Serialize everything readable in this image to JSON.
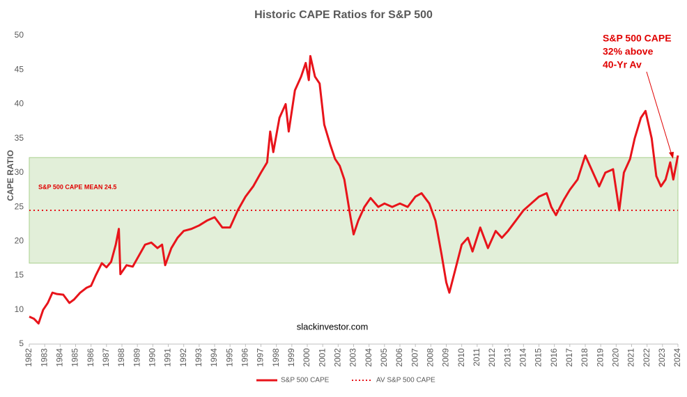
{
  "chart_data": {
    "type": "line",
    "title": "Historic CAPE Ratios for S&P 500",
    "ylabel": "CAPE RATIO",
    "xlim": [
      1982,
      2024
    ],
    "ylim": [
      5,
      50
    ],
    "xticks": [
      1982,
      1983,
      1984,
      1985,
      1986,
      1987,
      1988,
      1989,
      1990,
      1991,
      1992,
      1993,
      1994,
      1995,
      1996,
      1997,
      1998,
      1999,
      2000,
      2001,
      2002,
      2003,
      2004,
      2005,
      2006,
      2007,
      2008,
      2009,
      2010,
      2011,
      2012,
      2013,
      2014,
      2015,
      2016,
      2017,
      2018,
      2019,
      2020,
      2021,
      2022,
      2023,
      2024
    ],
    "yticks": [
      5,
      10,
      15,
      20,
      25,
      30,
      35,
      40,
      45,
      50
    ],
    "grid": false,
    "legend": "bottom",
    "band": {
      "range": [
        16.8,
        32.2
      ],
      "color": "#e2efd9",
      "edge": "#a9d08e"
    },
    "annotations": [
      "S&P 500 CAPE",
      "32% above",
      "40-Yr Av",
      "S&P 500 CAPE MEAN 24.5",
      "slackinvestor.com"
    ],
    "series": [
      {
        "name": "S&P 500 CAPE",
        "color": "#e8141b",
        "x": [
          1982.0,
          1982.3,
          1982.6,
          1982.9,
          1983.2,
          1983.5,
          1983.8,
          1984.2,
          1984.6,
          1984.9,
          1985.3,
          1985.7,
          1986.0,
          1986.3,
          1986.7,
          1987.0,
          1987.3,
          1987.6,
          1987.8,
          1987.9,
          1988.3,
          1988.7,
          1989.0,
          1989.5,
          1989.9,
          1990.3,
          1990.6,
          1990.8,
          1991.2,
          1991.6,
          1992.0,
          1992.5,
          1993.0,
          1993.5,
          1994.0,
          1994.5,
          1995.0,
          1995.5,
          1996.0,
          1996.5,
          1997.0,
          1997.4,
          1997.6,
          1997.8,
          1998.2,
          1998.6,
          1998.8,
          1999.2,
          1999.6,
          1999.9,
          2000.1,
          2000.2,
          2000.5,
          2000.8,
          2001.1,
          2001.5,
          2001.8,
          2002.1,
          2002.4,
          2002.8,
          2003.0,
          2003.3,
          2003.7,
          2004.1,
          2004.6,
          2005.0,
          2005.5,
          2006.0,
          2006.5,
          2007.0,
          2007.4,
          2007.9,
          2008.3,
          2008.7,
          2009.0,
          2009.2,
          2009.6,
          2010.0,
          2010.4,
          2010.7,
          2011.2,
          2011.7,
          2012.2,
          2012.6,
          2013.0,
          2013.5,
          2014.0,
          2014.5,
          2015.0,
          2015.5,
          2015.8,
          2016.1,
          2016.6,
          2017.0,
          2017.5,
          2018.0,
          2018.3,
          2018.9,
          2019.3,
          2019.8,
          2020.2,
          2020.5,
          2020.9,
          2021.2,
          2021.6,
          2021.9,
          2022.3,
          2022.6,
          2022.9,
          2023.2,
          2023.5,
          2023.7,
          2024.0
        ],
        "values": [
          9.0,
          8.7,
          8.0,
          10.0,
          11.0,
          12.5,
          12.3,
          12.2,
          11.0,
          11.5,
          12.5,
          13.2,
          13.5,
          15.0,
          16.8,
          16.2,
          17.0,
          19.5,
          21.8,
          15.2,
          16.5,
          16.3,
          17.5,
          19.5,
          19.8,
          19.0,
          19.5,
          16.5,
          19.0,
          20.5,
          21.5,
          21.8,
          22.3,
          23.0,
          23.5,
          22.0,
          22.0,
          24.5,
          26.5,
          28.0,
          30.0,
          31.5,
          36.0,
          33.0,
          38.0,
          40.0,
          36.0,
          42.0,
          44.0,
          46.0,
          43.5,
          47.0,
          44.0,
          43.0,
          37.0,
          34.0,
          32.0,
          31.0,
          29.0,
          23.5,
          21.0,
          23.0,
          25.0,
          26.3,
          25.0,
          25.5,
          25.0,
          25.5,
          25.0,
          26.5,
          27.0,
          25.5,
          23.0,
          18.0,
          14.0,
          12.5,
          16.0,
          19.5,
          20.5,
          18.5,
          22.0,
          19.0,
          21.5,
          20.5,
          21.5,
          23.0,
          24.5,
          25.5,
          26.5,
          27.0,
          25.0,
          23.8,
          26.0,
          27.5,
          29.0,
          32.5,
          31.0,
          28.0,
          30.0,
          30.5,
          24.5,
          30.0,
          32.0,
          35.0,
          38.0,
          39.0,
          35.0,
          29.5,
          28.0,
          29.0,
          31.5,
          29.0,
          32.5
        ]
      },
      {
        "name": "AV S&P 500 CAPE",
        "color": "#e8141b",
        "dotted": true,
        "x": [
          1982,
          2024
        ],
        "values": [
          24.5,
          24.5
        ]
      }
    ]
  }
}
